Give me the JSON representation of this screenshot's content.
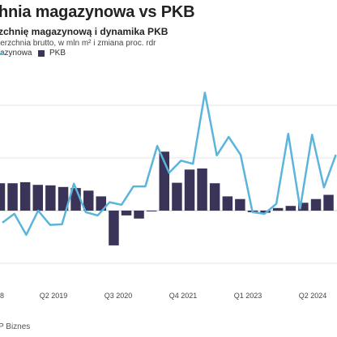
{
  "header": {
    "title": "hnia magazynowa vs PKB",
    "subtitle": "zchnię magazynową i dynamika PKB",
    "note": "ierzchnia brutto, w mln m² i zmiana proc. rdr"
  },
  "legend": {
    "line_label": "azynowa",
    "bar_label": "PKB"
  },
  "source": "P Biznes",
  "chart_data": {
    "type": "bar",
    "title": "",
    "xlabel": "",
    "ylabel": "",
    "x_tick_labels": [
      "8",
      "Q2 2019",
      "Q3 2020",
      "Q4 2021",
      "Q1 2023",
      "Q2 2024"
    ],
    "grid": "horizontal",
    "legend_position": "top-left",
    "series": [
      {
        "name": "PKB",
        "kind": "bar",
        "color": "#3a3558",
        "values": [
          5.2,
          5.2,
          5.4,
          4.9,
          4.8,
          4.5,
          4.3,
          3.8,
          2.7,
          -6.6,
          -0.9,
          -1.5,
          -0.1,
          11.2,
          5.3,
          7.8,
          8.0,
          5.2,
          2.7,
          2.2,
          -0.3,
          -0.4,
          0.5,
          0.9,
          1.5,
          2.2,
          3.0
        ]
      },
      {
        "name": "",
        "kind": "line",
        "color": "#5ab4dc",
        "values": [
          -2.3,
          -0.6,
          -4.6,
          0.0,
          -2.7,
          -2.6,
          5.1,
          -0.3,
          -0.9,
          1.6,
          1.1,
          4.6,
          4.6,
          12.3,
          7.2,
          9.5,
          8.9,
          22.4,
          10.5,
          14.0,
          10.6,
          -0.3,
          -0.6,
          1.3,
          14.6,
          0.4,
          14.4,
          4.4,
          10.6
        ]
      }
    ],
    "y_axis": {
      "min": -10,
      "max": 25,
      "gridlines": [
        -10,
        0,
        10,
        20
      ]
    }
  }
}
